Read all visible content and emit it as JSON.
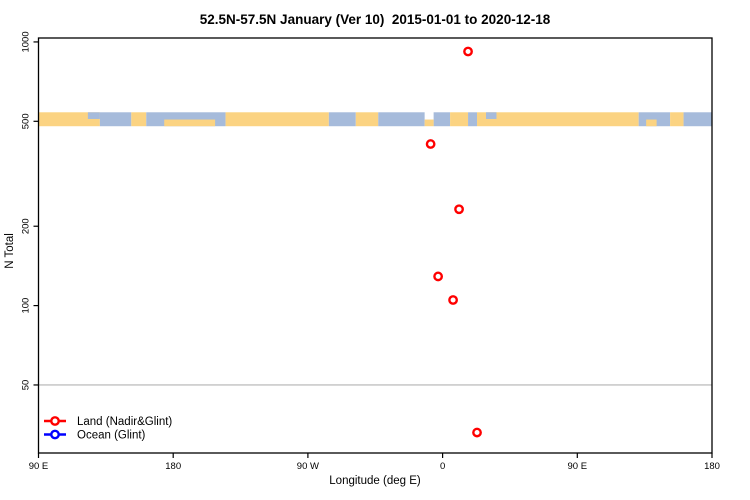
{
  "chart_data": {
    "type": "scatter",
    "title": "52.5N-57.5N January (Ver 10)  2015-01-01 to 2020-12-18",
    "xlabel": "Longitude (deg E)",
    "ylabel": "N Total",
    "x_axis": {
      "range": [
        -270,
        180
      ],
      "ticks": [
        -270,
        -180,
        -90,
        0,
        90,
        180
      ],
      "tick_labels": [
        "90 E",
        "180",
        "90 W",
        "0",
        "90 E",
        "180"
      ]
    },
    "y_axis": {
      "scale": "log10",
      "range": [
        27.6,
        1035
      ],
      "ticks": [
        50,
        100,
        200,
        500,
        1000
      ],
      "tick_labels": [
        "50",
        "100",
        "200",
        "500",
        "1000"
      ]
    },
    "gridline_y": 50,
    "gridline_color": "#c0c0c0",
    "map_band": {
      "value_range": [
        479,
        541
      ],
      "land_color": "#FBD382",
      "ocean_color": "#A6BBDB",
      "segments": [
        {
          "from": -270,
          "to": -229,
          "type": "land"
        },
        {
          "from": -229,
          "to": -208,
          "type": "ocean"
        },
        {
          "from": -208,
          "to": -198,
          "type": "land"
        },
        {
          "from": -198,
          "to": -145,
          "type": "ocean"
        },
        {
          "from": -145,
          "to": -76,
          "type": "land"
        },
        {
          "from": -76,
          "to": -58,
          "type": "ocean"
        },
        {
          "from": -58,
          "to": -43,
          "type": "land"
        },
        {
          "from": -43,
          "to": -12,
          "type": "ocean"
        },
        {
          "from": -6,
          "to": 5,
          "type": "ocean"
        },
        {
          "from": 5,
          "to": 17,
          "type": "land"
        },
        {
          "from": 17,
          "to": 23,
          "type": "ocean"
        },
        {
          "from": 23,
          "to": 131,
          "type": "land"
        },
        {
          "from": 131,
          "to": 152,
          "type": "ocean"
        },
        {
          "from": 152,
          "to": 161,
          "type": "land"
        },
        {
          "from": 161,
          "to": 180,
          "type": "ocean"
        },
        {
          "from": -186,
          "to": -152,
          "type": "land",
          "part": "bottom"
        },
        {
          "from": -237,
          "to": -229,
          "type": "ocean",
          "part": "top"
        },
        {
          "from": -12,
          "to": -6,
          "type": "land",
          "part": "bottom"
        },
        {
          "from": 29,
          "to": 36,
          "type": "ocean",
          "part": "top"
        },
        {
          "from": 136,
          "to": 143,
          "type": "land",
          "part": "bottom"
        }
      ]
    },
    "series": [
      {
        "name": "Land (Nadir&Glint)",
        "color": "#FF0000",
        "points": [
          {
            "lon": 17,
            "n": 920
          },
          {
            "lon": -8,
            "n": 410
          },
          {
            "lon": 11,
            "n": 232
          },
          {
            "lon": -3,
            "n": 129
          },
          {
            "lon": 7,
            "n": 105
          },
          {
            "lon": 23,
            "n": 33
          }
        ]
      },
      {
        "name": "Ocean (Glint)",
        "color": "#0000FF",
        "points": []
      }
    ],
    "legend": {
      "position": "bottom-left",
      "entries": [
        "Land (Nadir&Glint)",
        "Ocean (Glint)"
      ]
    }
  },
  "colors": {
    "axis": "#000000",
    "background": "#FFFFFF"
  }
}
